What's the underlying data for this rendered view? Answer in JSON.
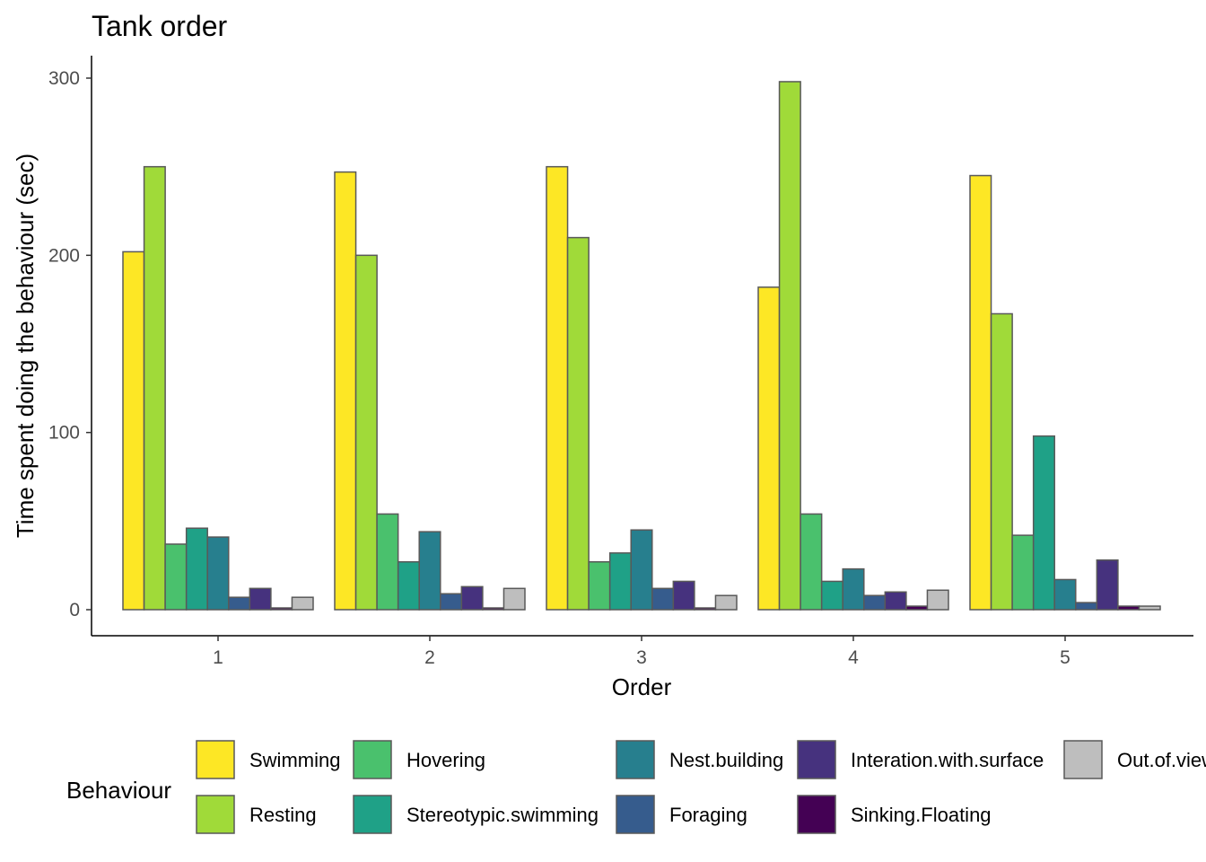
{
  "chart_data": {
    "type": "bar",
    "title": "Tank order",
    "xlabel": "Order",
    "ylabel": "Time spent doing the behaviour (sec)",
    "categories": [
      "1",
      "2",
      "3",
      "4",
      "5"
    ],
    "ylim": [
      -14,
      310
    ],
    "yticks": [
      0,
      100,
      200,
      300
    ],
    "grid": false,
    "legend_title": "Behaviour",
    "legend_position": "bottom",
    "series": [
      {
        "name": "Swimming",
        "color": "#FDE725",
        "values": [
          202,
          247,
          250,
          182,
          245
        ]
      },
      {
        "name": "Resting",
        "color": "#A0DA39",
        "values": [
          250,
          200,
          210,
          298,
          167
        ]
      },
      {
        "name": "Hovering",
        "color": "#4AC16D",
        "values": [
          37,
          54,
          27,
          54,
          42
        ]
      },
      {
        "name": "Stereotypic.swimming",
        "color": "#1FA187",
        "values": [
          46,
          27,
          32,
          16,
          98
        ]
      },
      {
        "name": "Nest.building",
        "color": "#277F8E",
        "values": [
          41,
          44,
          45,
          23,
          17
        ]
      },
      {
        "name": "Foraging",
        "color": "#365C8D",
        "values": [
          7,
          9,
          12,
          8,
          4
        ]
      },
      {
        "name": "Interation.with.surface",
        "color": "#46327E",
        "values": [
          12,
          13,
          16,
          10,
          28
        ]
      },
      {
        "name": "Sinking.Floating",
        "color": "#440154",
        "values": [
          1,
          1,
          1,
          2,
          2
        ]
      },
      {
        "name": "Out.of.view",
        "color": "#BEBEBE",
        "values": [
          7,
          12,
          8,
          11,
          2
        ]
      }
    ]
  }
}
